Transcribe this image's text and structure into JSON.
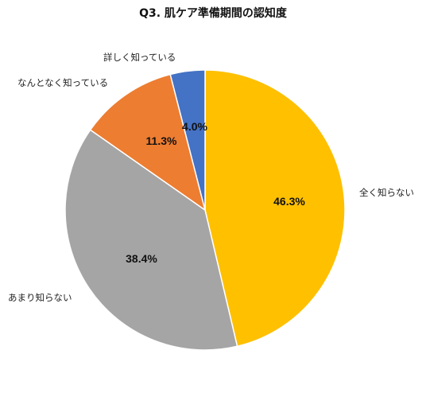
{
  "chart_data": {
    "type": "pie",
    "title": "Q3. 肌ケア準備期間の認知度",
    "slices": [
      {
        "label": "全く知らない",
        "value": 46.3,
        "value_label": "46.3%",
        "color": "#FFC000"
      },
      {
        "label": "あまり知らない",
        "value": 38.4,
        "value_label": "38.4%",
        "color": "#A5A5A5"
      },
      {
        "label": "なんとなく知っている",
        "value": 11.3,
        "value_label": "11.3%",
        "color": "#ED7D31"
      },
      {
        "label": "詳しく知っている",
        "value": 4.0,
        "value_label": "4.0%",
        "color": "#4472C4"
      }
    ],
    "start": "12 o'clock",
    "direction": "clockwise",
    "legend": "none"
  }
}
